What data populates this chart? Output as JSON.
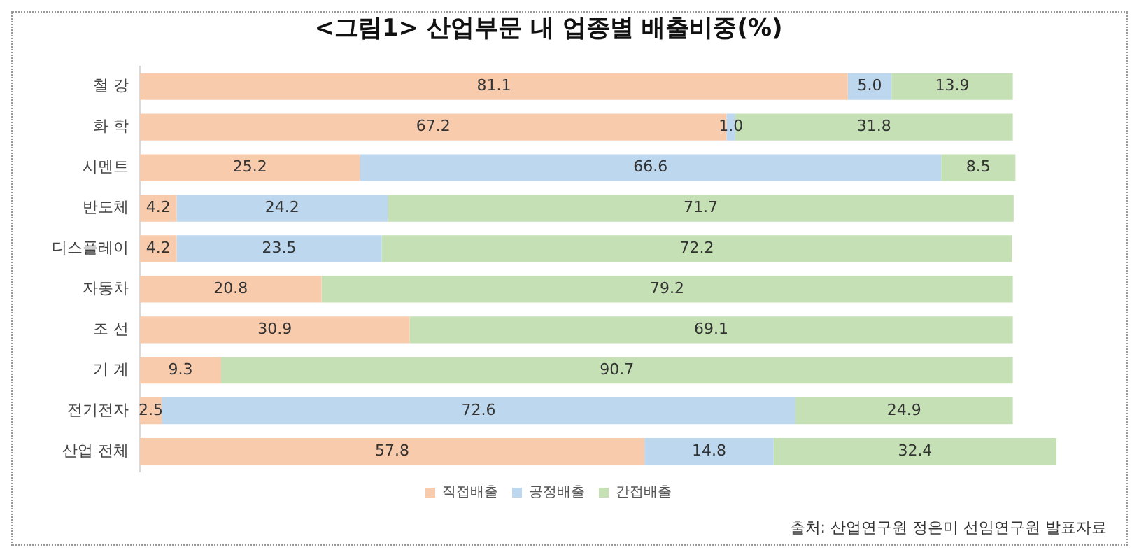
{
  "chart_data": {
    "type": "bar",
    "orientation": "horizontal",
    "stacked": true,
    "title": "<그림1> 산업부문 내 업종별 배출비중(%)",
    "categories": [
      "철 강",
      "화 학",
      "시멘트",
      "반도체",
      "디스플레이",
      "자동차",
      "조 선",
      "기 계",
      "전기전자",
      "산업 전체"
    ],
    "series": [
      {
        "name": "직접배출",
        "color": "#f8cbad",
        "values": [
          81.1,
          67.2,
          25.2,
          4.2,
          4.2,
          20.8,
          30.9,
          9.3,
          2.5,
          57.8
        ],
        "value_labels": [
          "81.1",
          "67.2",
          "25.2",
          "4.2",
          "4.2",
          "20.8",
          "30.9",
          "9.3",
          "2.5",
          "57.8"
        ]
      },
      {
        "name": "공정배출",
        "color": "#bdd7ee",
        "values": [
          5.0,
          1.0,
          66.6,
          24.2,
          23.5,
          null,
          null,
          null,
          72.6,
          14.8
        ],
        "value_labels": [
          "5.0",
          "1.0",
          "66.6",
          "24.2",
          "23.5",
          null,
          null,
          null,
          "72.6",
          "14.8"
        ]
      },
      {
        "name": "간접배출",
        "color": "#c5e0b4",
        "values": [
          13.9,
          31.8,
          8.5,
          71.7,
          72.2,
          79.2,
          69.1,
          90.7,
          24.9,
          32.4
        ],
        "value_labels": [
          "13.9",
          "31.8",
          "8.5",
          "71.7",
          "72.2",
          "79.2",
          "69.1",
          "90.7",
          "24.9",
          "32.4"
        ]
      }
    ],
    "xlim": [
      0,
      105
    ],
    "tick_labels": "y",
    "grid": false,
    "legend": "bottom",
    "annotations": [
      "출처: 산업연구원 정은미 선임연구원 발표자료"
    ]
  }
}
